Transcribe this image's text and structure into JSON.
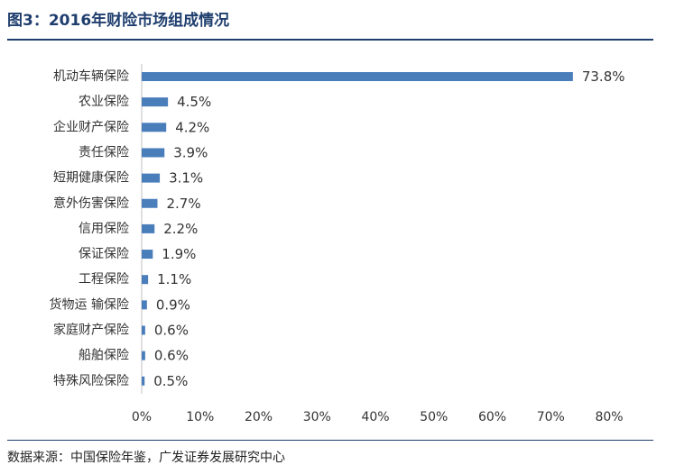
{
  "header": {
    "title": "图3：2016年财险市场组成情况"
  },
  "footer": {
    "source": "数据来源：中国保险年鉴，广发证券发展研究中心"
  },
  "chart_data": {
    "type": "bar",
    "orientation": "horizontal",
    "bar_color": "#4a7ebb",
    "categories": [
      "机动车辆保险",
      "农业保险",
      "企业财产保险",
      "责任保险",
      "短期健康保险",
      "意外伤害保险",
      "信用保险",
      "保证保险",
      "工程保险",
      "货物运 输保险",
      "家庭财产保险",
      "船舶保险",
      "特殊风险保险"
    ],
    "values": [
      73.8,
      4.5,
      4.2,
      3.9,
      3.1,
      2.7,
      2.2,
      1.9,
      1.1,
      0.9,
      0.6,
      0.6,
      0.5
    ],
    "value_labels": [
      "73.8%",
      "4.5%",
      "4.2%",
      "3.9%",
      "3.1%",
      "2.7%",
      "2.2%",
      "1.9%",
      "1.1%",
      "0.9%",
      "0.6%",
      "0.6%",
      "0.5%"
    ],
    "x_ticks": [
      0,
      10,
      20,
      30,
      40,
      50,
      60,
      70,
      80
    ],
    "x_tick_labels": [
      "0%",
      "10%",
      "20%",
      "30%",
      "40%",
      "50%",
      "60%",
      "70%",
      "80%"
    ],
    "xlim": [
      0,
      80
    ],
    "xlabel": "",
    "ylabel": "",
    "grid": false,
    "legend": "none"
  }
}
